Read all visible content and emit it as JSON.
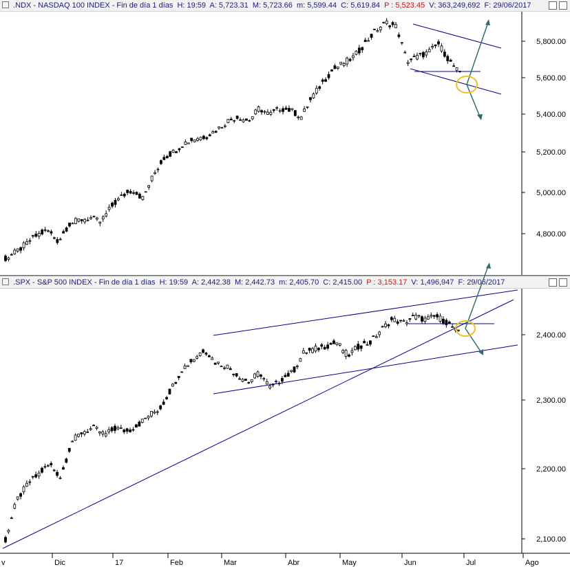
{
  "panels": [
    {
      "header": {
        "symbol": ".NDX - NASDAQ 100 INDEX - Fin de día 1 días",
        "h": "H: 19:59",
        "a": "A: 5,723.31",
        "m": "M: 5,723.66",
        "mm": "m: 5,599.44",
        "c": "C: 5,619.84",
        "p": "P : 5,523.45",
        "v": "V: 363,249,692",
        "f": "F: 29/06/2017"
      },
      "y_ticks": [
        "5,800.00",
        "5,600.00",
        "5,400.00",
        "5,200.00",
        "5,000.00",
        "4,800.00"
      ]
    },
    {
      "header": {
        "symbol": ".SPX - S&P 500 INDEX - Fin de día 1 días",
        "h": "H: 19:59",
        "a": "A: 2,442.38",
        "m": "M: 2,442.73",
        "mm": "m: 2,405.70",
        "c": "C: 2,415.00",
        "p": "P : 3,153.17",
        "v": "V: 1,496,947",
        "f": "F: 29/06/2017"
      },
      "y_ticks": [
        "2,400.00",
        "2,300.00",
        "2,200.00",
        "2,100.00"
      ]
    }
  ],
  "x_axis": [
    "v",
    "Dic",
    "17",
    "Feb",
    "Mar",
    "Abr",
    "May",
    "Jun",
    "Jul",
    "Ago"
  ],
  "chart_data": [
    {
      "type": "candlestick",
      "title": ".NDX - NASDAQ 100 INDEX - Fin de día 1 días",
      "ylim": [
        4700,
        5900
      ],
      "y_ticks": [
        5800,
        5600,
        5400,
        5200,
        5000,
        4800
      ],
      "x_labels": [
        "v",
        "Dic",
        "17",
        "Feb",
        "Mar",
        "Abr",
        "May",
        "Jun",
        "Jul",
        "Ago"
      ],
      "grid": false,
      "close_path": [
        4760,
        4790,
        4830,
        4870,
        4890,
        4840,
        4920,
        4940,
        4950,
        4930,
        5000,
        5050,
        5080,
        5040,
        5150,
        5230,
        5260,
        5300,
        5320,
        5330,
        5360,
        5400,
        5420,
        5400,
        5460,
        5430,
        5460,
        5450,
        5420,
        5510,
        5580,
        5640,
        5670,
        5700,
        5760,
        5820,
        5860,
        5840,
        5680,
        5700,
        5720,
        5760,
        5680,
        5620
      ],
      "trendlines_note": "Falling channel drawn over June decline with arrows up and down from circled breakout point",
      "colors": {
        "candles": "#000000",
        "trendlines": "#00008b",
        "arrows": "#2e6e6e",
        "highlight": "#f0c020"
      }
    },
    {
      "type": "candlestick",
      "title": ".SPX - S&P 500 INDEX - Fin de día 1 días",
      "ylim": [
        2085,
        2480
      ],
      "y_ticks": [
        2400,
        2300,
        2200,
        2100
      ],
      "x_labels": [
        "v",
        "Dic",
        "17",
        "Feb",
        "Mar",
        "Abr",
        "May",
        "Jun",
        "Jul",
        "Ago"
      ],
      "grid": false,
      "close_path": [
        2100,
        2160,
        2185,
        2200,
        2215,
        2195,
        2250,
        2265,
        2270,
        2260,
        2270,
        2265,
        2275,
        2290,
        2300,
        2330,
        2360,
        2375,
        2390,
        2370,
        2365,
        2350,
        2340,
        2355,
        2330,
        2345,
        2355,
        2385,
        2390,
        2395,
        2400,
        2380,
        2395,
        2400,
        2420,
        2435,
        2430,
        2440,
        2435,
        2440,
        2430,
        2415
      ],
      "trendlines_note": "Rising channel from March, long support line from November, arrows up and down from circled point",
      "colors": {
        "candles": "#000000",
        "trendlines": "#00008b",
        "arrows": "#2e6e6e",
        "highlight": "#f0c020"
      }
    }
  ]
}
